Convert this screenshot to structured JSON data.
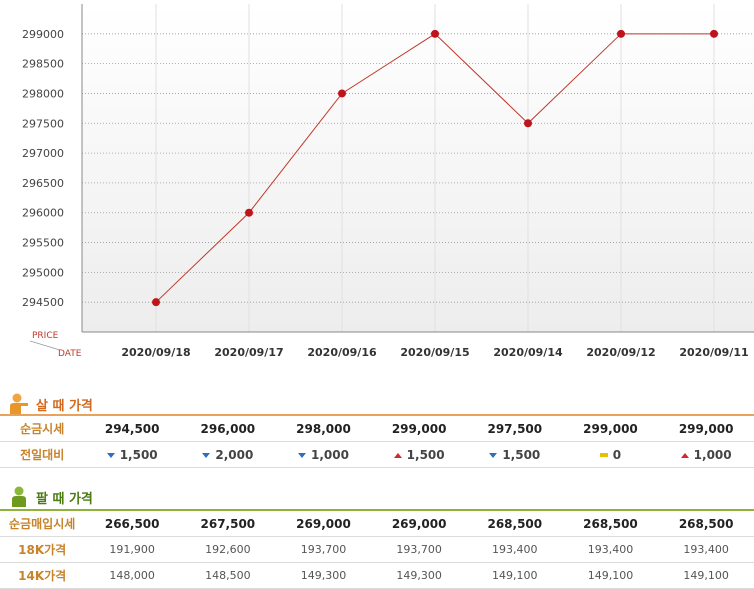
{
  "chart_data": {
    "type": "line",
    "x": [
      "2020/09/18",
      "2020/09/17",
      "2020/09/16",
      "2020/09/15",
      "2020/09/14",
      "2020/09/12",
      "2020/09/11"
    ],
    "series": [
      {
        "values": [
          294500,
          296000,
          298000,
          299000,
          297500,
          299000,
          299000
        ]
      }
    ],
    "y_ticks": [
      "294500",
      "295000",
      "295500",
      "296000",
      "296500",
      "297000",
      "297500",
      "298000",
      "298500",
      "299000"
    ],
    "ylim": [
      294000,
      299500
    ],
    "ylabel": "PRICE",
    "xlabel": "DATE",
    "grid": true,
    "colors": {
      "line": "#c0392b",
      "point": "#c0141c",
      "grid": "#999999"
    }
  },
  "buy": {
    "title": "살 때 가격",
    "rows": [
      {
        "label": "순금시세",
        "values": [
          "294,500",
          "296,000",
          "298,000",
          "299,000",
          "297,500",
          "299,000",
          "299,000"
        ]
      }
    ],
    "diff_row": {
      "label": "전일대비",
      "items": [
        {
          "dir": "down",
          "value": "1,500"
        },
        {
          "dir": "down",
          "value": "2,000"
        },
        {
          "dir": "down",
          "value": "1,000"
        },
        {
          "dir": "up",
          "value": "1,500"
        },
        {
          "dir": "down",
          "value": "1,500"
        },
        {
          "dir": "flat",
          "value": "0"
        },
        {
          "dir": "up",
          "value": "1,000"
        }
      ]
    }
  },
  "sell": {
    "title": "팔 때 가격",
    "rows": [
      {
        "label": "순금매입시세",
        "style": "bold",
        "values": [
          "266,500",
          "267,500",
          "269,000",
          "269,000",
          "268,500",
          "268,500",
          "268,500"
        ]
      },
      {
        "label": "18K가격",
        "style": "plain",
        "values": [
          "191,900",
          "192,600",
          "193,700",
          "193,700",
          "193,400",
          "193,400",
          "193,400"
        ]
      },
      {
        "label": "14K가격",
        "style": "plain",
        "values": [
          "148,000",
          "148,500",
          "149,300",
          "149,300",
          "149,100",
          "149,100",
          "149,100"
        ]
      }
    ]
  },
  "icons": {
    "buy": "person-orange-icon",
    "sell": "person-green-icon"
  }
}
